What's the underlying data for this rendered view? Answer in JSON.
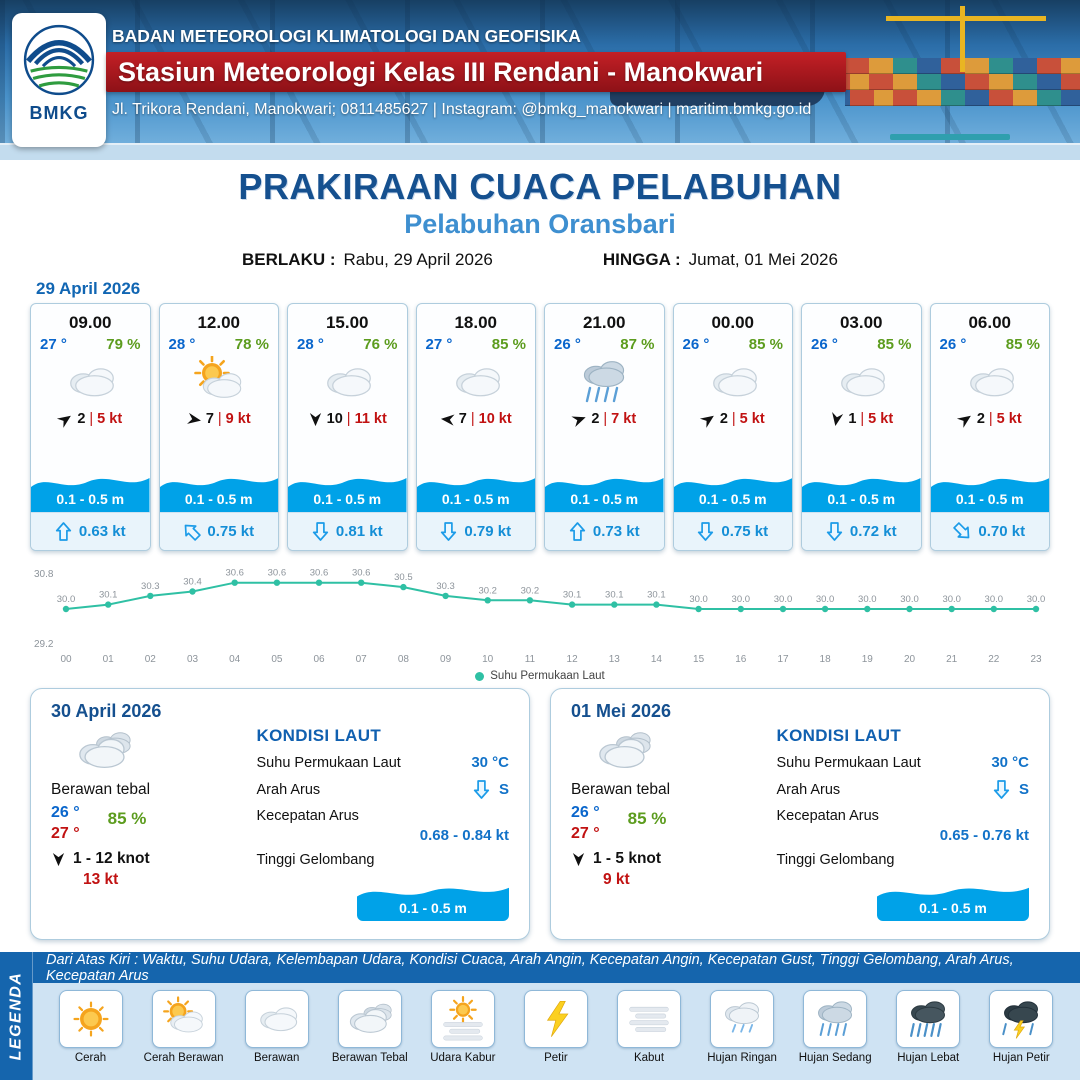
{
  "colors": {
    "wave": "#00a2e8",
    "accent_blue": "#1565ad",
    "banner_red": "#b51b21"
  },
  "header": {
    "logo_text": "BMKG",
    "org": "BADAN METEOROLOGI KLIMATOLOGI DAN GEOFISIKA",
    "station": "Stasiun Meteorologi Kelas III Rendani - Manokwari",
    "contact": "Jl. Trikora Rendani, Manokwari; 0811485627 | Instagram: @bmkg_manokwari | maritim.bmkg.go.id"
  },
  "title": {
    "main": "PRAKIRAAN CUACA PELABUHAN",
    "subtitle": "Pelabuhan Oransbari",
    "berlaku_label": "BERLAKU :",
    "berlaku_value": "Rabu, 29 April 2026",
    "hingga_label": "HINGGA :",
    "hingga_value": "Jumat, 01 Mei 2026"
  },
  "forecast_date": "29 April 2026",
  "hourly": [
    {
      "time": "09.00",
      "temp": "27 °",
      "rh": "79 %",
      "icon": "berawan",
      "wind": "2",
      "gust": "5 kt",
      "wind_deg": -35,
      "wave": "0.1 - 0.5 m",
      "cur": "0.63 kt",
      "cur_deg": 0
    },
    {
      "time": "12.00",
      "temp": "28 °",
      "rh": "78 %",
      "icon": "cerah-berawan",
      "wind": "7",
      "gust": "9 kt",
      "wind_deg": 10,
      "wave": "0.1 - 0.5 m",
      "cur": "0.75 kt",
      "cur_deg": -45
    },
    {
      "time": "15.00",
      "temp": "28 °",
      "rh": "76 %",
      "icon": "berawan",
      "wind": "10",
      "gust": "11 kt",
      "wind_deg": 90,
      "wave": "0.1 - 0.5 m",
      "cur": "0.81 kt",
      "cur_deg": 180
    },
    {
      "time": "18.00",
      "temp": "27 °",
      "rh": "85 %",
      "icon": "berawan",
      "wind": "7",
      "gust": "10 kt",
      "wind_deg": 185,
      "wave": "0.1 - 0.5 m",
      "cur": "0.79 kt",
      "cur_deg": 180
    },
    {
      "time": "21.00",
      "temp": "26 °",
      "rh": "87 %",
      "icon": "hujan-sedang",
      "wind": "2",
      "gust": "7 kt",
      "wind_deg": -20,
      "wave": "0.1 - 0.5 m",
      "cur": "0.73 kt",
      "cur_deg": 0
    },
    {
      "time": "00.00",
      "temp": "26 °",
      "rh": "85 %",
      "icon": "berawan",
      "wind": "2",
      "gust": "5 kt",
      "wind_deg": -35,
      "wave": "0.1 - 0.5 m",
      "cur": "0.75 kt",
      "cur_deg": 180
    },
    {
      "time": "03.00",
      "temp": "26 °",
      "rh": "85 %",
      "icon": "berawan",
      "wind": "1",
      "gust": "5 kt",
      "wind_deg": 100,
      "wave": "0.1 - 0.5 m",
      "cur": "0.72 kt",
      "cur_deg": 180
    },
    {
      "time": "06.00",
      "temp": "26 °",
      "rh": "85 %",
      "icon": "berawan",
      "wind": "2",
      "gust": "5 kt",
      "wind_deg": -35,
      "wave": "0.1 - 0.5 m",
      "cur": "0.70 kt",
      "cur_deg": 135
    }
  ],
  "chart_data": {
    "type": "line",
    "title": "",
    "x": [
      "00",
      "01",
      "02",
      "03",
      "04",
      "05",
      "06",
      "07",
      "08",
      "09",
      "10",
      "11",
      "12",
      "13",
      "14",
      "15",
      "16",
      "17",
      "18",
      "19",
      "20",
      "21",
      "22",
      "23"
    ],
    "values": [
      30.0,
      30.1,
      30.3,
      30.4,
      30.6,
      30.6,
      30.6,
      30.6,
      30.5,
      30.3,
      30.2,
      30.2,
      30.1,
      30.1,
      30.1,
      30.0,
      30.0,
      30.0,
      30.0,
      30.0,
      30.0,
      30.0,
      30.0,
      30.0
    ],
    "ylim": [
      29.2,
      30.8
    ],
    "xlabel": "",
    "ylabel": "",
    "grid": false,
    "legend": "Suhu Permukaan Laut",
    "legend_position": "bottom-center",
    "line_color": "#2fc0a4"
  },
  "daily": [
    {
      "date": "30 April 2026",
      "icon": "berawan-tebal",
      "condition": "Berawan tebal",
      "temp_min": "26 °",
      "temp_max": "27 °",
      "rh": "85 %",
      "wind": "1  - 12 knot",
      "wind_deg": 90,
      "gust": "13 kt",
      "sea_title": "KONDISI LAUT",
      "sst_label": "Suhu Permukaan Laut",
      "sst": "30 °C",
      "current_dir_label": "Arah Arus",
      "current_dir": "S",
      "current_deg": 180,
      "current_speed_label": "Kecepatan Arus",
      "current_speed": "0.68  - 0.84 kt",
      "wave_label": "Tinggi Gelombang",
      "wave": "0.1 - 0.5 m"
    },
    {
      "date": "01 Mei 2026",
      "icon": "berawan-tebal",
      "condition": "Berawan tebal",
      "temp_min": "26 °",
      "temp_max": "27 °",
      "rh": "85 %",
      "wind": "1  - 5 knot",
      "wind_deg": 90,
      "gust": "9 kt",
      "sea_title": "KONDISI LAUT",
      "sst_label": "Suhu Permukaan Laut",
      "sst": "30 °C",
      "current_dir_label": "Arah Arus",
      "current_dir": "S",
      "current_deg": 180,
      "current_speed_label": "Kecepatan Arus",
      "current_speed": "0.65  - 0.76 kt",
      "wave_label": "Tinggi Gelombang",
      "wave": "0.1 - 0.5 m"
    }
  ],
  "legend": {
    "vertical_label": "LEGENDA",
    "description": "Dari Atas Kiri : Waktu, Suhu Udara, Kelembapan Udara, Kondisi Cuaca, Arah Angin, Kecepatan Angin, Kecepatan Gust, Tinggi Gelombang, Arah Arus, Kecepatan Arus",
    "items": [
      {
        "label": "Cerah",
        "icon": "cerah"
      },
      {
        "label": "Cerah Berawan",
        "icon": "cerah-berawan"
      },
      {
        "label": "Berawan",
        "icon": "berawan"
      },
      {
        "label": "Berawan Tebal",
        "icon": "berawan-tebal"
      },
      {
        "label": "Udara Kabur",
        "icon": "udara-kabur"
      },
      {
        "label": "Petir",
        "icon": "petir"
      },
      {
        "label": "Kabut",
        "icon": "kabut"
      },
      {
        "label": "Hujan Ringan",
        "icon": "hujan-ringan"
      },
      {
        "label": "Hujan Sedang",
        "icon": "hujan-sedang"
      },
      {
        "label": "Hujan Lebat",
        "icon": "hujan-lebat"
      },
      {
        "label": "Hujan Petir",
        "icon": "hujan-petir"
      }
    ]
  }
}
